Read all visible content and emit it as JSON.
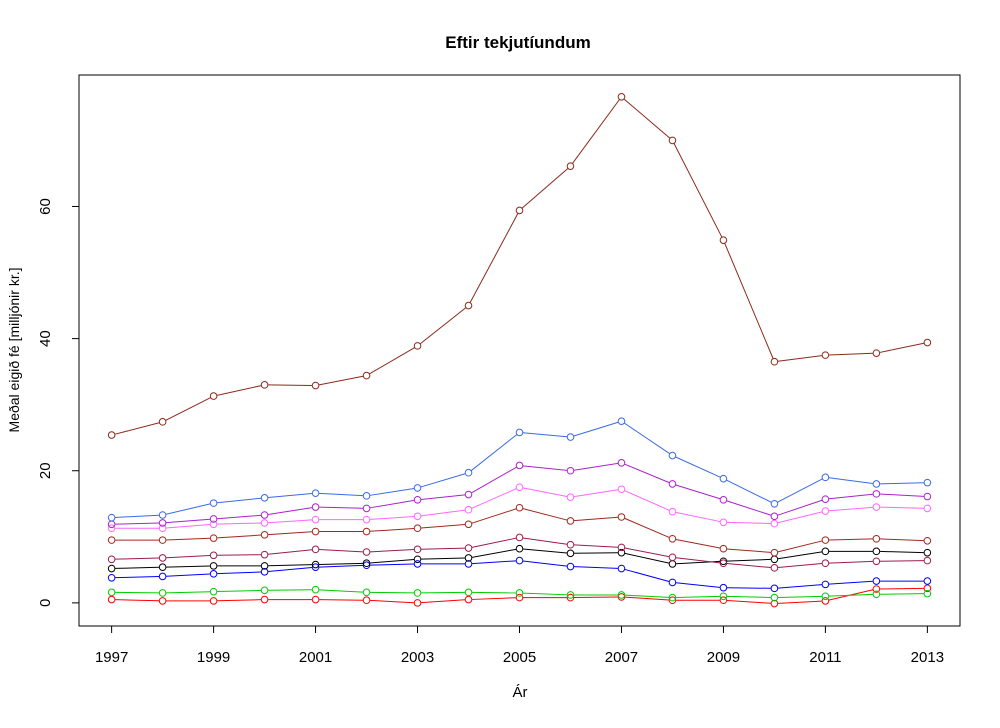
{
  "chart_data": {
    "type": "line",
    "title": "Eftir tekjutíundum",
    "xlabel": "Ár",
    "ylabel": "Meðal eigið fé  [milljónir kr.]",
    "x": [
      1997,
      1998,
      1999,
      2000,
      2001,
      2002,
      2003,
      2004,
      2005,
      2006,
      2007,
      2008,
      2009,
      2010,
      2011,
      2012,
      2013
    ],
    "x_ticks": [
      "1997",
      "1999",
      "2001",
      "2003",
      "2005",
      "2007",
      "2009",
      "2011",
      "2013"
    ],
    "y_ticks": [
      "0",
      "20",
      "40",
      "60"
    ],
    "xlim": [
      1996.36,
      2013.64
    ],
    "ylim": [
      -3.5,
      79.9
    ],
    "grid": false,
    "legend": "none",
    "markers": "open-circle",
    "series": [
      {
        "color": "#ff0000",
        "values": [
          0.5,
          0.3,
          0.3,
          0.5,
          0.5,
          0.4,
          0.0,
          0.5,
          0.8,
          0.8,
          0.9,
          0.4,
          0.4,
          -0.1,
          0.3,
          2.1,
          2.2
        ]
      },
      {
        "color": "#00cd00",
        "values": [
          1.6,
          1.5,
          1.7,
          1.9,
          2.0,
          1.6,
          1.5,
          1.6,
          1.5,
          1.2,
          1.2,
          0.8,
          1.0,
          0.8,
          1.0,
          1.3,
          1.4
        ]
      },
      {
        "color": "#0000ff",
        "values": [
          3.8,
          4.0,
          4.4,
          4.7,
          5.4,
          5.7,
          5.9,
          5.9,
          6.4,
          5.5,
          5.2,
          3.1,
          2.3,
          2.2,
          2.8,
          3.3,
          3.3
        ]
      },
      {
        "color": "#000000",
        "values": [
          5.2,
          5.4,
          5.6,
          5.6,
          5.8,
          6.0,
          6.6,
          6.8,
          8.2,
          7.5,
          7.6,
          5.9,
          6.3,
          6.6,
          7.8,
          7.8,
          7.6
        ]
      },
      {
        "color": "#9b1b4e",
        "values": [
          6.6,
          6.8,
          7.2,
          7.3,
          8.1,
          7.7,
          8.1,
          8.3,
          9.9,
          8.8,
          8.4,
          6.9,
          6.0,
          5.3,
          6.0,
          6.3,
          6.4
        ]
      },
      {
        "color": "#a0281d",
        "values": [
          9.5,
          9.5,
          9.8,
          10.3,
          10.8,
          10.8,
          11.3,
          11.9,
          14.4,
          12.4,
          13.0,
          9.7,
          8.2,
          7.6,
          9.5,
          9.7,
          9.4
        ]
      },
      {
        "color": "#ff66ff",
        "values": [
          11.3,
          11.3,
          11.9,
          12.1,
          12.6,
          12.6,
          13.1,
          14.1,
          17.5,
          16.0,
          17.2,
          13.8,
          12.2,
          12.0,
          13.9,
          14.5,
          14.3
        ]
      },
      {
        "color": "#aa22cc",
        "values": [
          11.9,
          12.1,
          12.7,
          13.3,
          14.5,
          14.3,
          15.6,
          16.4,
          20.8,
          20.0,
          21.2,
          18.0,
          15.6,
          13.1,
          15.7,
          16.5,
          16.1
        ]
      },
      {
        "color": "#3a6ae6",
        "values": [
          12.9,
          13.3,
          15.1,
          15.9,
          16.6,
          16.2,
          17.4,
          19.7,
          25.8,
          25.1,
          27.5,
          22.3,
          18.8,
          15.0,
          19.0,
          18.0,
          18.2
        ]
      },
      {
        "color": "#8b2a1a",
        "values": [
          25.4,
          27.4,
          31.3,
          33.0,
          32.9,
          34.4,
          38.9,
          45.0,
          59.4,
          66.1,
          76.6,
          70.0,
          54.9,
          36.5,
          37.5,
          37.8,
          39.4
        ]
      }
    ]
  }
}
